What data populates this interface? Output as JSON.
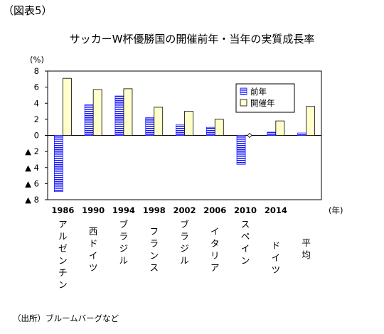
{
  "figure_label": "（図表5）",
  "source_note": "（出所）ブルームバーグなど",
  "chart_data": {
    "type": "bar",
    "title": "サッカーW杯優勝国の開催前年・当年の実質成長率",
    "ylabel": "(%)",
    "xlabel": "(年)",
    "ylim": [
      -8,
      8
    ],
    "yticks": [
      "8",
      "6",
      "4",
      "2",
      "0",
      "▲ 2",
      "▲ 4",
      "▲ 6",
      "▲ 8"
    ],
    "categories": [
      "1986",
      "1990",
      "1994",
      "1998",
      "2002",
      "2006",
      "2010",
      "2014",
      ""
    ],
    "countries": [
      "アルゼンチン",
      "西ドイツ",
      "ブラジル",
      "フランス",
      "ブラジル",
      "イタリア",
      "スペイン",
      "ドイツ",
      "平均"
    ],
    "series": [
      {
        "name": "前年",
        "values": [
          -7.0,
          3.8,
          4.9,
          2.2,
          1.3,
          1.0,
          -3.6,
          0.4,
          0.3
        ],
        "color": "#1a1aff"
      },
      {
        "name": "開催年",
        "values": [
          7.1,
          5.7,
          5.8,
          3.5,
          3.0,
          2.0,
          0.0,
          1.8,
          3.6
        ],
        "color": "#ffffcc"
      }
    ],
    "legend": "top-right",
    "grid": false
  }
}
